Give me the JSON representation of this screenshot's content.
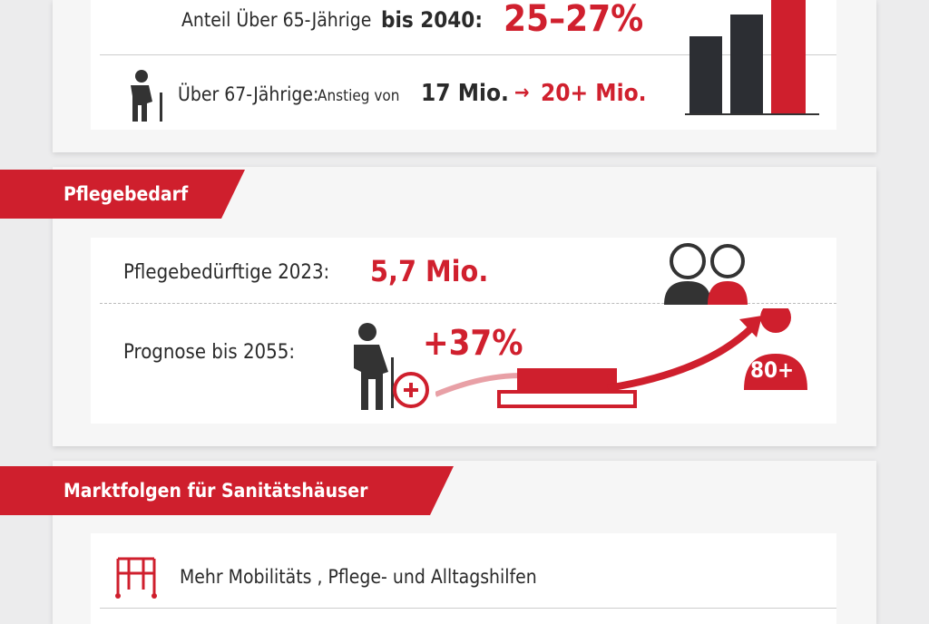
{
  "aging": {
    "share_label": "Anteil Über 65-Jährige",
    "share_year": "bis 2040:",
    "share_value": "25–27%",
    "over67_label": "Über 67-Jährige:",
    "over67_rise": "Anstieg von",
    "over67_from": "17 Mio.",
    "over67_to": "20+ Mio."
  },
  "care": {
    "header": "Pflegebedarf",
    "needs_label": "Pflegebedürftige 2023:",
    "needs_value": "5,7 Mio.",
    "forecast_label": "Prognose bis 2055:",
    "forecast_value": "+37%",
    "age_badge": "80+"
  },
  "market": {
    "header": "Marktfolgen für Sanitätshäuser",
    "items": [
      "Mehr Mobilitäts , Pflege- und Alltagshilfen"
    ]
  }
}
